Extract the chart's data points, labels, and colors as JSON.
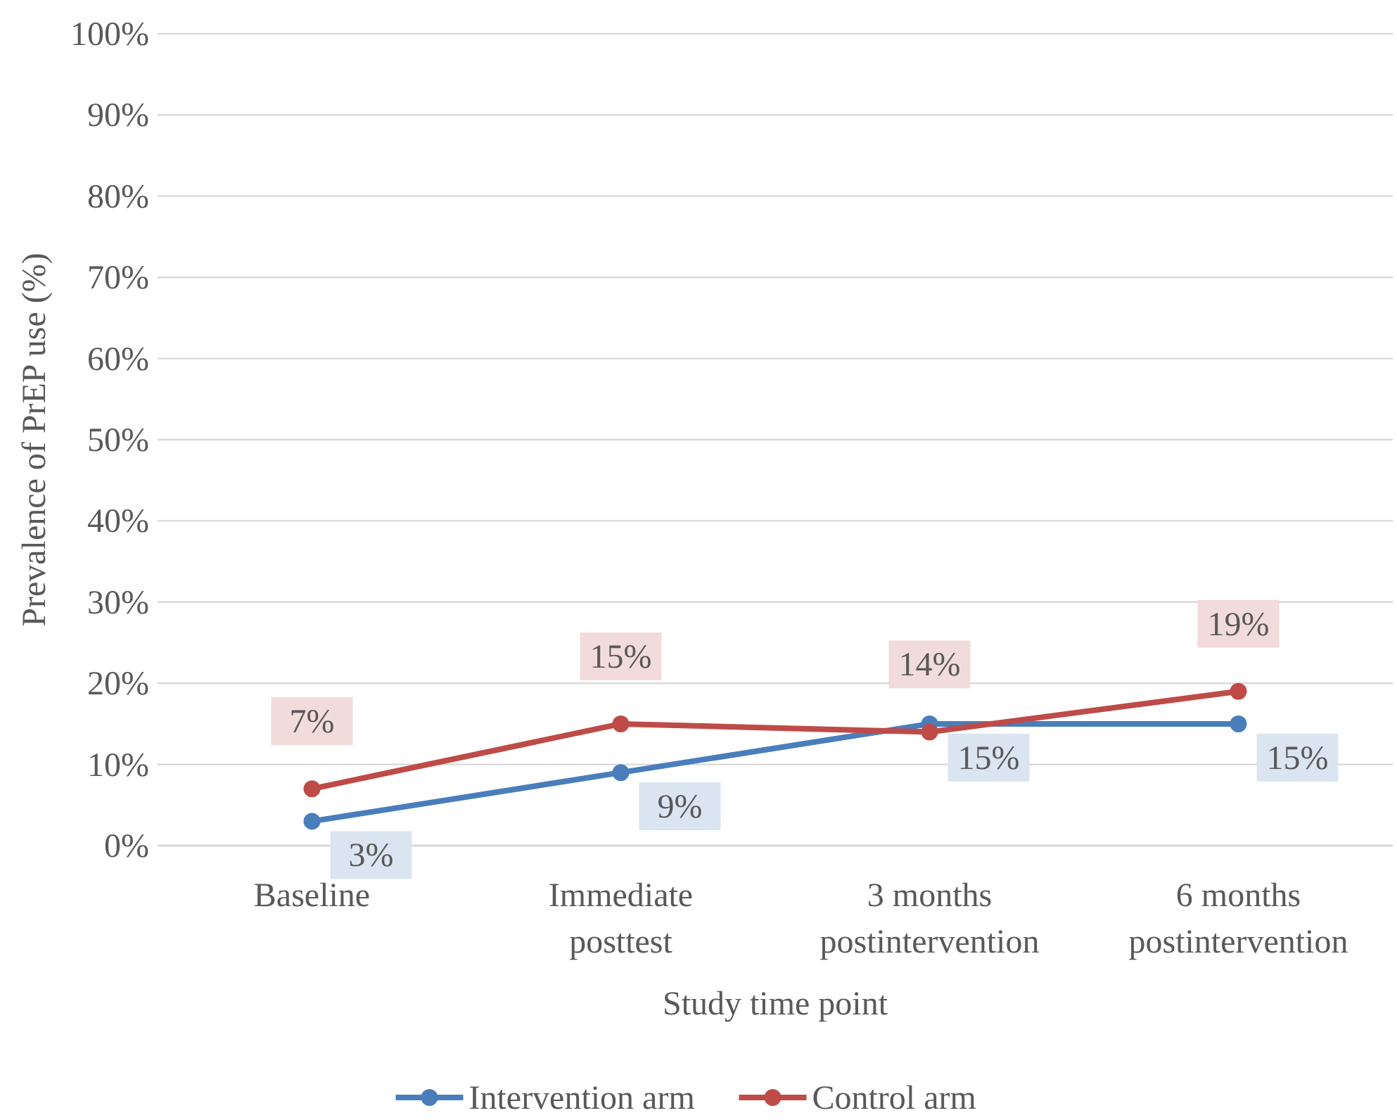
{
  "chart_data": {
    "type": "line",
    "xlabel": "Study time point",
    "ylabel": "Prevalence of PrEP use (%)",
    "categories": [
      "Baseline",
      "Immediate posttest",
      "3 months postintervention",
      "6 months postintervention"
    ],
    "series": [
      {
        "name": "Intervention arm",
        "color": "#4a7ebb",
        "values": [
          3,
          9,
          15,
          15
        ],
        "value_labels": [
          "3%",
          "9%",
          "15%",
          "15%"
        ]
      },
      {
        "name": "Control arm",
        "color": "#be4b48",
        "values": [
          7,
          15,
          14,
          19
        ],
        "value_labels": [
          "7%",
          "15%",
          "14%",
          "19%"
        ]
      }
    ],
    "ylim": [
      0,
      100
    ],
    "yticks": [
      {
        "value": 0,
        "label": "0%"
      },
      {
        "value": 10,
        "label": "10%"
      },
      {
        "value": 20,
        "label": "20%"
      },
      {
        "value": 30,
        "label": "30%"
      },
      {
        "value": 40,
        "label": "40%"
      },
      {
        "value": 50,
        "label": "50%"
      },
      {
        "value": 60,
        "label": "60%"
      },
      {
        "value": 70,
        "label": "70%"
      },
      {
        "value": 80,
        "label": "80%"
      },
      {
        "value": 90,
        "label": "90%"
      },
      {
        "value": 100,
        "label": "100%"
      }
    ],
    "grid": "y",
    "legend": "bottom",
    "marker": "circle",
    "line_style": "solid"
  }
}
